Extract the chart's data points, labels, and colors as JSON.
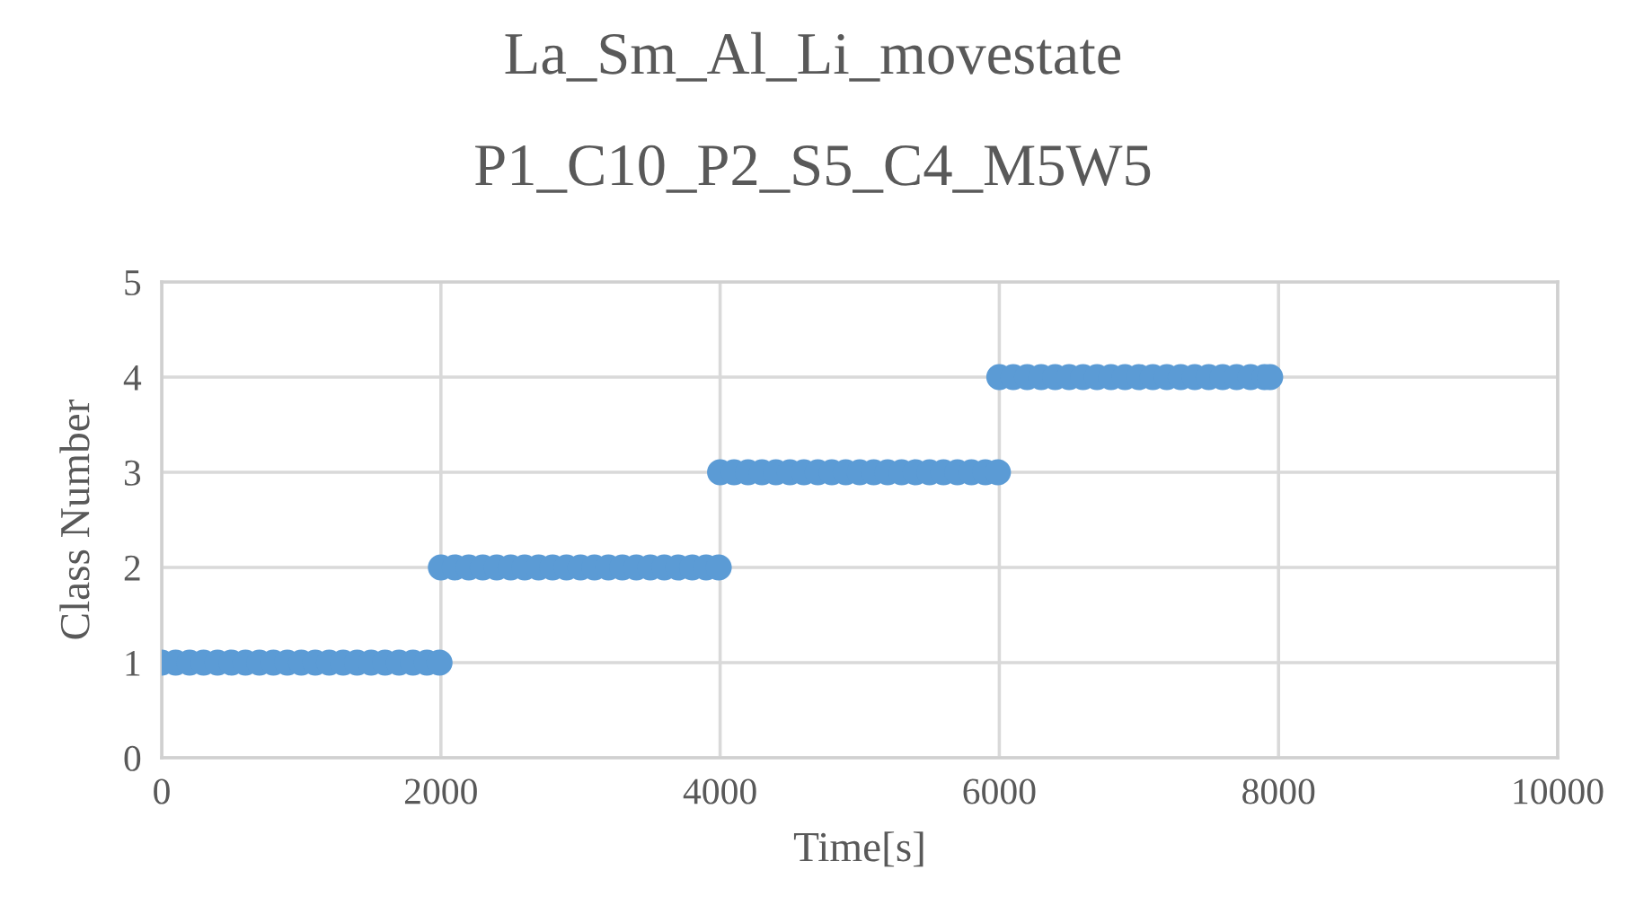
{
  "chart_data": {
    "type": "scatter",
    "title": "La_Sm_Al_Li_movestate",
    "subtitle": "P1_C10_P2_S5_C4_M5W5",
    "xlabel": "Time[s]",
    "ylabel": "Class Number",
    "xlim": [
      0,
      10000
    ],
    "xticks": [
      0,
      2000,
      4000,
      6000,
      8000,
      10000
    ],
    "ylim": [
      0,
      5
    ],
    "yticks": [
      0,
      1,
      2,
      3,
      4,
      5
    ],
    "grid": true,
    "marker": "circle",
    "series": [
      {
        "color": "#5b9bd5",
        "x": [
          0,
          100,
          200,
          300,
          400,
          500,
          600,
          700,
          800,
          900,
          1000,
          1100,
          1200,
          1300,
          1400,
          1500,
          1600,
          1700,
          1800,
          1900,
          1990,
          2000,
          2100,
          2200,
          2300,
          2400,
          2500,
          2600,
          2700,
          2800,
          2900,
          3000,
          3100,
          3200,
          3300,
          3400,
          3500,
          3600,
          3700,
          3800,
          3900,
          3990,
          4000,
          4100,
          4200,
          4300,
          4400,
          4500,
          4600,
          4700,
          4800,
          4900,
          5000,
          5100,
          5200,
          5300,
          5400,
          5500,
          5600,
          5700,
          5800,
          5900,
          5990,
          6000,
          6100,
          6200,
          6300,
          6400,
          6500,
          6600,
          6700,
          6800,
          6900,
          7000,
          7100,
          7200,
          7300,
          7400,
          7500,
          7600,
          7700,
          7800,
          7900,
          7940
        ],
        "values": [
          1,
          1,
          1,
          1,
          1,
          1,
          1,
          1,
          1,
          1,
          1,
          1,
          1,
          1,
          1,
          1,
          1,
          1,
          1,
          1,
          1,
          2,
          2,
          2,
          2,
          2,
          2,
          2,
          2,
          2,
          2,
          2,
          2,
          2,
          2,
          2,
          2,
          2,
          2,
          2,
          2,
          2,
          3,
          3,
          3,
          3,
          3,
          3,
          3,
          3,
          3,
          3,
          3,
          3,
          3,
          3,
          3,
          3,
          3,
          3,
          3,
          3,
          3,
          4,
          4,
          4,
          4,
          4,
          4,
          4,
          4,
          4,
          4,
          4,
          4,
          4,
          4,
          4,
          4,
          4,
          4,
          4,
          4,
          4
        ]
      }
    ]
  }
}
